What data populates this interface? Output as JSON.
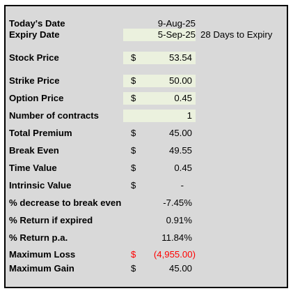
{
  "rows": {
    "today": {
      "label": "Today's Date",
      "value": "9-Aug-25"
    },
    "expiry": {
      "label": "Expiry Date",
      "value": "5-Sep-25",
      "note": "28 Days to Expiry"
    },
    "stock_price": {
      "label": "Stock Price",
      "currency": "$",
      "value": "53.54"
    },
    "strike_price": {
      "label": "Strike Price",
      "currency": "$",
      "value": "50.00"
    },
    "option_price": {
      "label": "Option Price",
      "currency": "$",
      "value": "0.45"
    },
    "contracts": {
      "label": "Number of contracts",
      "value": "1"
    },
    "total_premium": {
      "label": "Total Premium",
      "currency": "$",
      "value": "45.00"
    },
    "break_even": {
      "label": "Break Even",
      "currency": "$",
      "value": "49.55"
    },
    "time_value": {
      "label": "Time Value",
      "currency": "$",
      "value": "0.45"
    },
    "intrinsic_value": {
      "label": "Intrinsic Value",
      "currency": "$",
      "value": "-"
    },
    "pct_decrease": {
      "label": "% decrease to break even",
      "value": "-7.45%"
    },
    "pct_return_expired": {
      "label": "% Return if expired",
      "value": "0.91%"
    },
    "pct_return_pa": {
      "label": "% Return p.a.",
      "value": "11.84%"
    },
    "max_loss": {
      "label": "Maximum Loss",
      "currency": "$",
      "value": "(4,955.00)"
    },
    "max_gain": {
      "label": "Maximum Gain",
      "currency": "$",
      "value": "45.00"
    }
  },
  "colors": {
    "input_fill": "#ebf1de",
    "panel": "#d9d9d9",
    "loss": "#ff0000"
  }
}
